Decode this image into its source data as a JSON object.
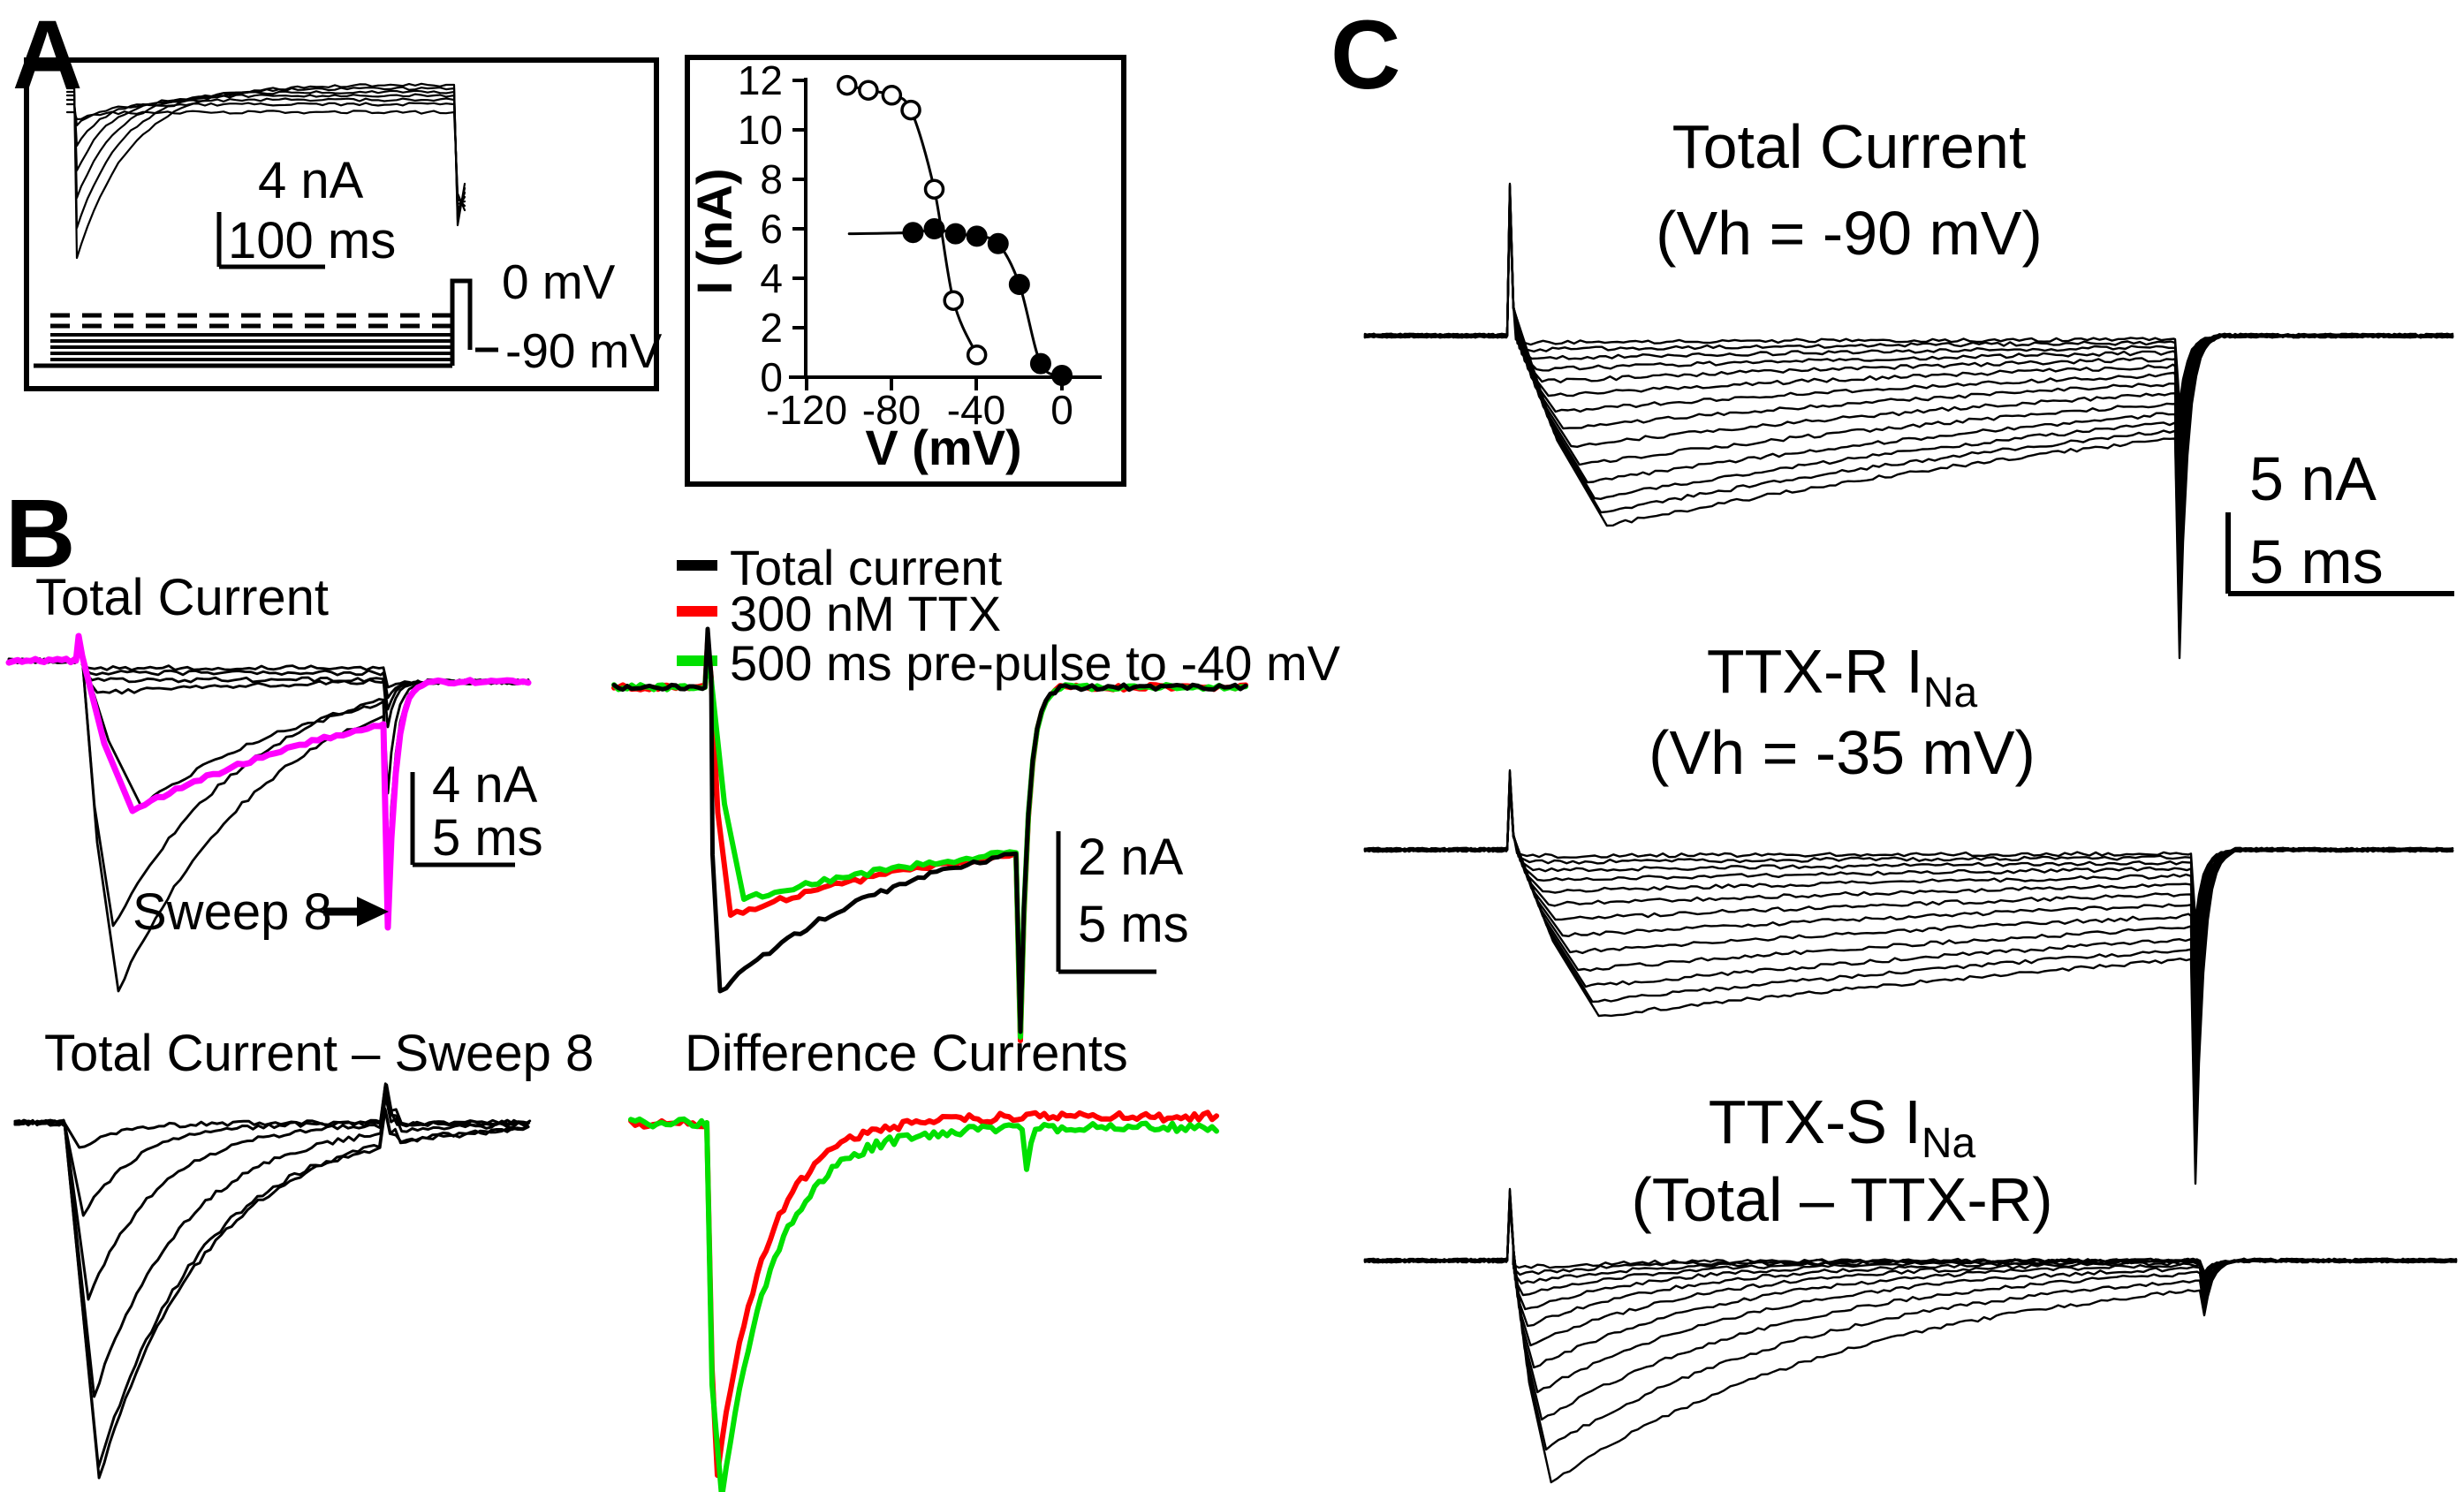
{
  "panel_a": {
    "label": "A",
    "scale_current": "4 nA",
    "scale_time": "100 ms",
    "protocol": {
      "step_label": "0 mV",
      "holding_label": "-90 mV"
    }
  },
  "chart_data": {
    "type": "scatter",
    "title": "",
    "xlabel": "V (mV)",
    "ylabel": "I (nA)",
    "xlim": [
      -130,
      10
    ],
    "ylim": [
      0,
      12
    ],
    "x_ticks": [
      -120,
      -80,
      -40,
      0
    ],
    "y_ticks": [
      12,
      10,
      8,
      6,
      4,
      2,
      0
    ],
    "grid": false,
    "legend_position": "none",
    "series": [
      {
        "name": "Total current steady-state inactivation (open circles)",
        "marker": "open-circle",
        "points": [
          [
            -101,
            11.8
          ],
          [
            -91,
            11.6
          ],
          [
            -80,
            11.4
          ],
          [
            -71,
            10.8
          ],
          [
            -60,
            7.6
          ],
          [
            -51,
            3.1
          ],
          [
            -40,
            0.9
          ]
        ]
      },
      {
        "name": "TTX-resistant component (filled circles)",
        "marker": "filled-circle",
        "plateau_line": {
          "from_v": -100,
          "to_v": -70,
          "i": 5.8
        },
        "points": [
          [
            -70,
            5.85
          ],
          [
            -60,
            6.0
          ],
          [
            -50,
            5.8
          ],
          [
            -40,
            5.7
          ],
          [
            -30,
            5.4
          ],
          [
            -20,
            3.75
          ],
          [
            -10,
            0.55
          ],
          [
            0,
            0.07
          ]
        ]
      }
    ]
  },
  "panel_b": {
    "label": "B",
    "title_top": "Total Current",
    "scale1_current": "4 nA",
    "scale1_time": "5 ms",
    "sweep_label": "Sweep 8",
    "sweep8_color": "#ff00ff",
    "legend": [
      {
        "label": "Total current",
        "color": "#000000"
      },
      {
        "label": "300 nM TTX",
        "color": "#ff0000"
      },
      {
        "label": "500 ms pre-pulse to -40 mV",
        "color": "#00e000"
      }
    ],
    "scale2_current": "2 nA",
    "scale2_time": "5 ms",
    "title_sub": "Total Current – Sweep 8",
    "title_diff": "Difference Currents"
  },
  "panel_c": {
    "label": "C",
    "group1_line1": "Total Current",
    "group1_line2": "(Vh = -90 mV)",
    "scale_current": "5 nA",
    "scale_time": "5 ms",
    "group2_main": "TTX-R I",
    "group2_sub": "Na",
    "group2_line2": "(Vh = -35 mV)",
    "group3_main": "TTX-S I",
    "group3_sub": "Na",
    "group3_line2": "(Total – TTX-R)"
  },
  "trace_families": {
    "a_box": {
      "x_start": 76,
      "x_on": 84,
      "x_end": 512,
      "bases": [
        96,
        100,
        104,
        108,
        113,
        118,
        127
      ],
      "dips": [
        196,
        158,
        120,
        85,
        52,
        24,
        8
      ],
      "taus": [
        60,
        52,
        45,
        38,
        32,
        26,
        20
      ]
    },
    "b_total": {
      "base": 748,
      "after": 772,
      "x_start": 10,
      "x_on": 86,
      "spike_top": 720,
      "x_tail": 434,
      "x_end": 600,
      "black_depths": [
        8,
        14,
        22,
        36,
        165,
        300,
        374
      ],
      "black_tails": [
        30,
        42,
        55,
        75,
        150,
        245,
        273
      ],
      "black_taus": [
        9000,
        9000,
        9000,
        700,
        220,
        160,
        168
      ],
      "black_minx": [
        100,
        102,
        104,
        110,
        160,
        128,
        134
      ],
      "sweep8": {
        "depth": 170,
        "min_x": 150,
        "tau": 330,
        "tail": 302
      }
    },
    "b_mid": {
      "base": 778,
      "x_start": 695,
      "x_on": 798,
      "x_tail": 1150,
      "x_end": 1412,
      "traces": [
        {
          "key": "red",
          "color": "#ff0000",
          "spike_top": 726,
          "min_x": 827,
          "depth": 258,
          "tau": 330,
          "plateau": 147,
          "tail": 400,
          "width": 6
        },
        {
          "key": "green",
          "color": "#00e000",
          "spike_top": 734,
          "min_x": 842,
          "depth": 240,
          "tau": 350,
          "plateau": 150,
          "tail": 396,
          "width": 6
        },
        {
          "key": "black",
          "color": "#000000",
          "spike_top": 712,
          "min_x": 815,
          "depth": 344,
          "tau": 220,
          "plateau": 145,
          "tail": 390,
          "width": 5
        }
      ]
    },
    "b_sub": {
      "base": 1271,
      "x_start": 17,
      "x_on": 73,
      "x_end": 602,
      "bump_x": 437,
      "bump": -42,
      "depths": [
        28,
        105,
        200,
        310,
        390,
        402
      ]
    },
    "b_diff": {
      "base": 1271,
      "x_start": 714,
      "x_on": 800,
      "x_end": 1378,
      "traces": [
        {
          "key": "red",
          "color": "#ff0000",
          "min_x": 812,
          "depth": 399,
          "tau": 55,
          "offset": -7,
          "width": 6
        },
        {
          "key": "green",
          "color": "#00e000",
          "min_x": 817,
          "depth": 424,
          "tau": 58,
          "offset": 5,
          "artifact_x": 1162,
          "artifact": 42,
          "width": 6
        }
      ]
    },
    "c_total": {
      "base": 380,
      "x_start": 1545,
      "x_on": 1706,
      "spike_top": 208,
      "x_tail": 2462,
      "x_end": 2780,
      "tail_max": 365,
      "tau": 1050,
      "min_off": 16,
      "min_stag": 0.45,
      "depths": [
        8,
        16,
        26,
        38,
        52,
        68,
        86,
        105,
        125,
        146,
        166,
        184,
        200,
        215
      ]
    },
    "c_ttxr": {
      "base": 962,
      "x_start": 1545,
      "x_on": 1706,
      "spike_top": 872,
      "x_tail": 2480,
      "x_end": 2780,
      "tail_max": 378,
      "tau": 1600,
      "min_off": 19,
      "min_stag": 0.45,
      "depths": [
        7,
        14,
        23,
        34,
        47,
        62,
        79,
        97,
        116,
        136,
        155,
        172,
        188
      ]
    },
    "c_ttxs": {
      "base": 1427,
      "x_start": 1545,
      "x_on": 1706,
      "spike_top": 1346,
      "x_tail": 2490,
      "x_end": 2780,
      "tail_max": 62,
      "tau_base": 115,
      "tau_scale": 1.0,
      "min_off": 12,
      "min_stag": 0.15,
      "depths": [
        8,
        16,
        26,
        39,
        55,
        74,
        96,
        121,
        149,
        180,
        214,
        251
      ]
    }
  }
}
